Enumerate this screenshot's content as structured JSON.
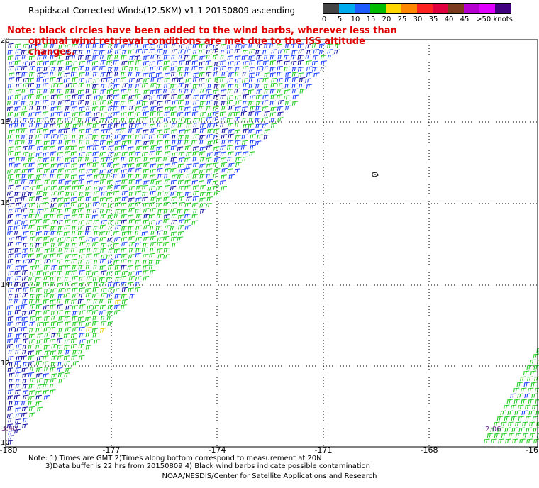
{
  "title": "Rapidscat Corrected Winds(12.5KM) v1.1 20150809 ascending",
  "note": {
    "line1": "Note: black circles have been added to the wind barbs, wherever less than",
    "line2": "optimal wind retrieval conditions are met due to the ISS altitude changes."
  },
  "legend": {
    "colors": [
      "#444444",
      "#00aaee",
      "#1e5bff",
      "#00bb00",
      "#ffd700",
      "#ff8800",
      "#ff2222",
      "#e00040",
      "#7a3b1f",
      "#b600d0",
      "#e000ff",
      "#400080"
    ],
    "labels": [
      "0",
      "5",
      "10",
      "15",
      "20",
      "25",
      "30",
      "35",
      "40",
      "45",
      ">50 knots"
    ]
  },
  "axes": {
    "lon_labels": [
      "-180",
      "-177",
      "-174",
      "-171",
      "-168",
      "-16"
    ],
    "lat_labels": [
      "20",
      "18",
      "16",
      "14",
      "12",
      "10"
    ]
  },
  "times": [
    "3:40",
    "2:06"
  ],
  "footnote": {
    "line1": "Note: 1) Times are GMT 2)Times along bottom correspond to measurement at 20N",
    "line2": "3)Data buffer is 22 hrs from 20150809 4) Black wind barbs indicate possible contamination"
  },
  "credit": "NOAA/NESDIS/Center for Satellite Applications and Research"
}
